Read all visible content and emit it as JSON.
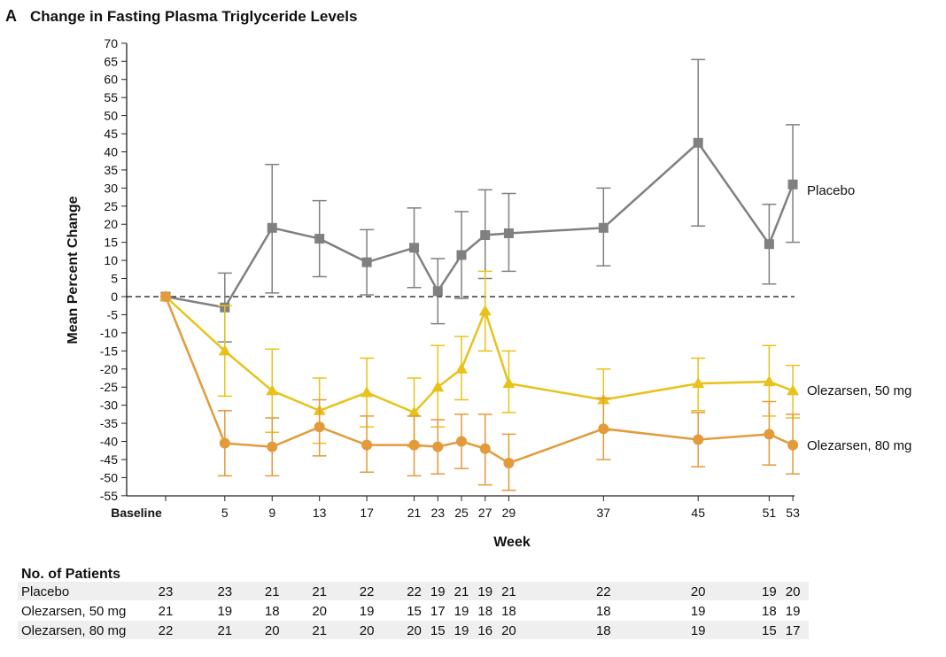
{
  "chart_data": {
    "type": "line",
    "panel_label": "A",
    "title": "Change in Fasting Plasma Triglyceride Levels",
    "xlabel": "Week",
    "ylabel": "Mean Percent Change",
    "ylim": [
      -55,
      70
    ],
    "ytick_step": 5,
    "x": [
      0,
      5,
      9,
      13,
      17,
      21,
      23,
      25,
      27,
      29,
      37,
      45,
      51,
      53
    ],
    "x_tick_labels": [
      "Baseline",
      "5",
      "9",
      "13",
      "17",
      "21",
      "23",
      "25",
      "27",
      "29",
      "37",
      "45",
      "51",
      "53"
    ],
    "reference_line": 0,
    "series": [
      {
        "name": "Placebo",
        "color": "#808080",
        "marker": "square",
        "values": [
          0,
          -3,
          19,
          16,
          9.5,
          13.5,
          1.5,
          11.5,
          17,
          17.5,
          19,
          42.5,
          14.5,
          31
        ],
        "err_low": [
          null,
          -12.5,
          1,
          5.5,
          0.5,
          2.5,
          -7.5,
          -0.5,
          5,
          7,
          8.5,
          19.5,
          3.5,
          15
        ],
        "err_high": [
          null,
          6.5,
          36.5,
          26.5,
          18.5,
          24.5,
          10.5,
          23.5,
          29.5,
          28.5,
          30,
          65.5,
          25.5,
          47.5
        ]
      },
      {
        "name": "Olezarsen, 50 mg",
        "color": "#e8c21a",
        "marker": "triangle",
        "values": [
          0,
          -15,
          -26,
          -31.5,
          -26.5,
          -32,
          -25,
          -20,
          -4,
          -24,
          -28.5,
          -24,
          -23.5,
          -26
        ],
        "err_low": [
          null,
          -27.5,
          -37.5,
          -40.5,
          -36,
          -41.5,
          -36,
          -28.5,
          -15,
          -32,
          -37,
          -31.5,
          -33,
          -33.5
        ],
        "err_high": [
          null,
          -2.5,
          -14.5,
          -22.5,
          -17,
          -22.5,
          -13.5,
          -11,
          7,
          -15,
          -20,
          -17,
          -13.5,
          -19
        ]
      },
      {
        "name": "Olezarsen, 80 mg",
        "color": "#e39a3b",
        "marker": "circle",
        "values": [
          0,
          -40.5,
          -41.5,
          -36,
          -41,
          -41,
          -41.5,
          -40,
          -42,
          -46,
          -36.5,
          -39.5,
          -38,
          -41
        ],
        "err_low": [
          null,
          -49.5,
          -49.5,
          -44,
          -48.5,
          -49.5,
          -49,
          -47.5,
          -52,
          -53.5,
          -45,
          -47,
          -46.5,
          -49
        ],
        "err_high": [
          null,
          -31.5,
          -33.5,
          -28.5,
          -33,
          -33,
          -34,
          -32.5,
          -32.5,
          -38,
          -28,
          -32,
          -29,
          -32.5
        ]
      }
    ]
  },
  "patients": {
    "title": "No. of Patients",
    "rows": [
      {
        "label": "Placebo",
        "counts": [
          "23",
          "23",
          "21",
          "21",
          "22",
          "22",
          "19",
          "21",
          "19",
          "21",
          "22",
          "20",
          "19",
          "20"
        ]
      },
      {
        "label": "Olezarsen, 50 mg",
        "counts": [
          "21",
          "19",
          "18",
          "20",
          "19",
          "15",
          "17",
          "19",
          "18",
          "18",
          "18",
          "19",
          "18",
          "19"
        ]
      },
      {
        "label": "Olezarsen, 80 mg",
        "counts": [
          "22",
          "21",
          "20",
          "21",
          "20",
          "20",
          "15",
          "19",
          "16",
          "20",
          "18",
          "19",
          "15",
          "17"
        ]
      }
    ]
  }
}
